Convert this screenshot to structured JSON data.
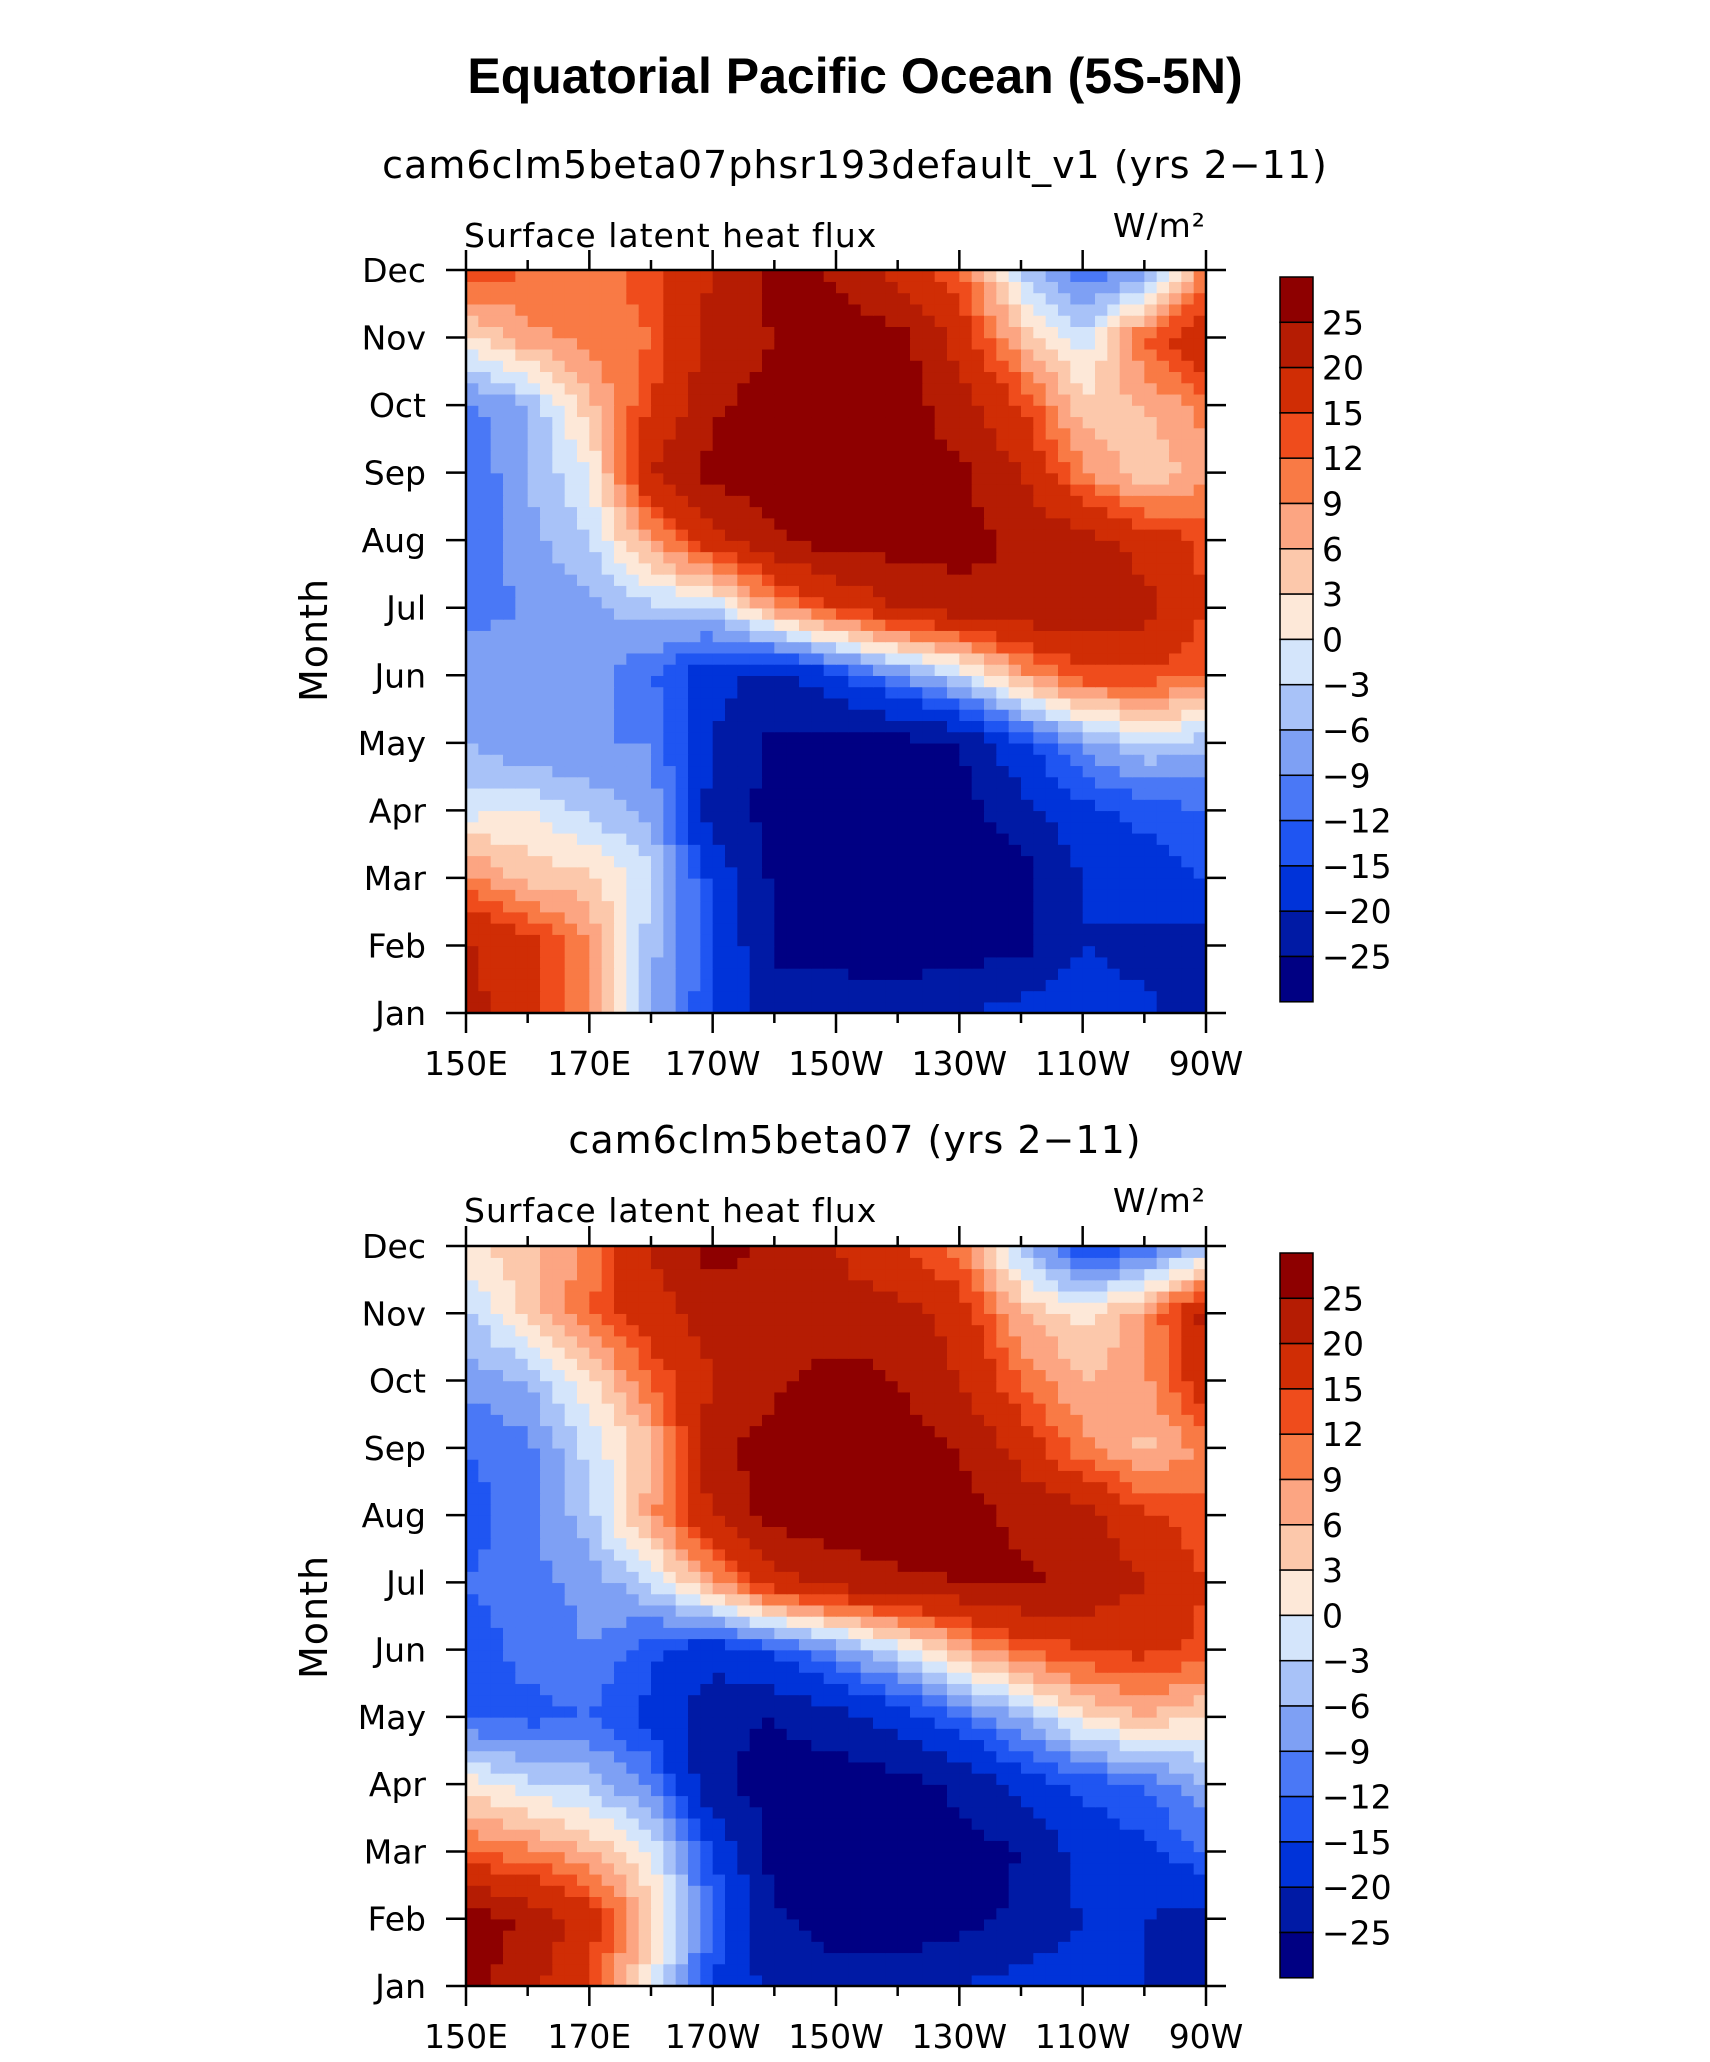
{
  "figure": {
    "title": "Equatorial Pacific Ocean (5S-5N)"
  },
  "chart_data": [
    {
      "type": "heatmap",
      "title": "cam6clm5beta07phsr193default_v1 (yrs 2−11)",
      "left_label": "Surface latent heat flux",
      "units_label": "W/m²",
      "xlabel": "",
      "ylabel": "Month",
      "x_ticks": [
        "150E",
        "170E",
        "170W",
        "150W",
        "130W",
        "110W",
        "90W"
      ],
      "x_range_deg_east": [
        150,
        270
      ],
      "y_ticks": [
        "Jan",
        "Feb",
        "Mar",
        "Apr",
        "May",
        "Jun",
        "Jul",
        "Aug",
        "Sep",
        "Oct",
        "Nov",
        "Dec"
      ],
      "x_columns_deg_east": [
        150,
        160,
        170,
        180,
        190,
        200,
        210,
        220,
        230,
        240,
        250,
        260,
        270
      ],
      "values_by_month": [
        [
          21,
          18,
          8,
          -6,
          -15,
          -22,
          -22,
          -22,
          -20,
          -18,
          -16,
          -19,
          -22
        ],
        [
          21,
          17,
          9,
          -5,
          -14,
          -26,
          -27,
          -28,
          -27,
          -27,
          -20,
          -22,
          -22
        ],
        [
          10,
          5,
          4,
          -2,
          -16,
          -26,
          -28,
          -28,
          -28,
          -27,
          -20,
          -17,
          -15
        ],
        [
          -1,
          0,
          -4,
          -7,
          -22,
          -27,
          -28,
          -28,
          -27,
          -22,
          -16,
          -14,
          -12
        ],
        [
          -6,
          -9,
          -9,
          -9,
          -20,
          -26,
          -27,
          -27,
          -25,
          -16,
          -8,
          -3,
          -5
        ],
        [
          -7,
          -8,
          -7,
          -12,
          -18,
          -22,
          -16,
          -9,
          -3,
          7,
          14,
          14,
          12
        ],
        [
          -10,
          -9,
          -7,
          -4,
          -3,
          8,
          15,
          20,
          23,
          24,
          24,
          22,
          15
        ],
        [
          -12,
          -7,
          -3,
          8,
          18,
          24,
          27,
          27,
          27,
          24,
          22,
          18,
          14
        ],
        [
          -12,
          -6,
          0,
          20,
          27,
          28,
          28,
          28,
          26,
          20,
          10,
          3,
          8
        ],
        [
          -10,
          -6,
          5,
          15,
          24,
          27,
          28,
          28,
          22,
          15,
          4,
          6,
          10
        ],
        [
          2,
          8,
          10,
          12,
          22,
          25,
          28,
          27,
          18,
          6,
          -2,
          12,
          20
        ],
        [
          15,
          12,
          10,
          14,
          20,
          27,
          24,
          18,
          12,
          -3,
          -12,
          -8,
          10
        ]
      ],
      "colorbar_levels": [
        -25,
        -20,
        -15,
        -12,
        -9,
        -6,
        -3,
        0,
        3,
        6,
        9,
        12,
        15,
        20,
        25
      ],
      "colorbar_labels": [
        "25",
        "20",
        "15",
        "12",
        "9",
        "6",
        "3",
        "0",
        "−3",
        "−6",
        "−9",
        "−12",
        "−15",
        "−20",
        "−25"
      ],
      "colors": [
        "#000083",
        "#001aa5",
        "#0033d9",
        "#1f55f2",
        "#4a78f6",
        "#7ea0f4",
        "#a8c2f8",
        "#d4e5fb",
        "#fde8d8",
        "#fcc8ab",
        "#fca582",
        "#f97a45",
        "#ef4c1c",
        "#d02d05",
        "#b51c03",
        "#8e0000"
      ]
    },
    {
      "type": "heatmap",
      "title": "cam6clm5beta07 (yrs 2−11)",
      "left_label": "Surface latent heat flux",
      "units_label": "W/m²",
      "xlabel": "",
      "ylabel": "Month",
      "x_ticks": [
        "150E",
        "170E",
        "170W",
        "150W",
        "130W",
        "110W",
        "90W"
      ],
      "x_range_deg_east": [
        150,
        270
      ],
      "y_ticks": [
        "Jan",
        "Feb",
        "Mar",
        "Apr",
        "May",
        "Jun",
        "Jul",
        "Aug",
        "Sep",
        "Oct",
        "Nov",
        "Dec"
      ],
      "x_columns_deg_east": [
        150,
        160,
        170,
        180,
        190,
        200,
        210,
        220,
        230,
        240,
        250,
        260,
        270
      ],
      "values_by_month": [
        [
          27,
          22,
          14,
          0,
          -15,
          -22,
          -22,
          -22,
          -20,
          -18,
          -18,
          -20,
          -22
        ],
        [
          28,
          24,
          18,
          5,
          -12,
          -24,
          -28,
          -28,
          -27,
          -24,
          -20,
          -20,
          -22
        ],
        [
          12,
          10,
          6,
          0,
          -15,
          -27,
          -28,
          -28,
          -27,
          -25,
          -18,
          -16,
          -12
        ],
        [
          2,
          -2,
          -4,
          -10,
          -24,
          -27,
          -28,
          -27,
          -24,
          -18,
          -14,
          -12,
          -6
        ],
        [
          -12,
          -13,
          -12,
          -16,
          -24,
          -25,
          -22,
          -18,
          -12,
          -6,
          2,
          6,
          2
        ],
        [
          -14,
          -11,
          -9,
          -14,
          -18,
          -14,
          -8,
          -2,
          6,
          12,
          15,
          16,
          14
        ],
        [
          -12,
          -10,
          -8,
          -3,
          8,
          18,
          22,
          24,
          25,
          26,
          24,
          20,
          15
        ],
        [
          -14,
          -10,
          -4,
          8,
          20,
          27,
          28,
          28,
          27,
          24,
          22,
          16,
          13
        ],
        [
          -12,
          -10,
          -2,
          5,
          24,
          27,
          28,
          27,
          25,
          18,
          10,
          5,
          10
        ],
        [
          -8,
          -6,
          2,
          12,
          20,
          24,
          27,
          25,
          20,
          12,
          6,
          8,
          18
        ],
        [
          -4,
          4,
          12,
          18,
          22,
          22,
          22,
          22,
          18,
          6,
          2,
          8,
          22
        ],
        [
          2,
          5,
          10,
          20,
          27,
          24,
          20,
          15,
          10,
          -4,
          -16,
          -12,
          -6
        ]
      ],
      "colorbar_levels": [
        -25,
        -20,
        -15,
        -12,
        -9,
        -6,
        -3,
        0,
        3,
        6,
        9,
        12,
        15,
        20,
        25
      ],
      "colorbar_labels": [
        "25",
        "20",
        "15",
        "12",
        "9",
        "6",
        "3",
        "0",
        "−3",
        "−6",
        "−9",
        "−12",
        "−15",
        "−20",
        "−25"
      ],
      "colors": [
        "#000083",
        "#001aa5",
        "#0033d9",
        "#1f55f2",
        "#4a78f6",
        "#7ea0f4",
        "#a8c2f8",
        "#d4e5fb",
        "#fde8d8",
        "#fcc8ab",
        "#fca582",
        "#f97a45",
        "#ef4c1c",
        "#d02d05",
        "#b51c03",
        "#8e0000"
      ]
    }
  ]
}
